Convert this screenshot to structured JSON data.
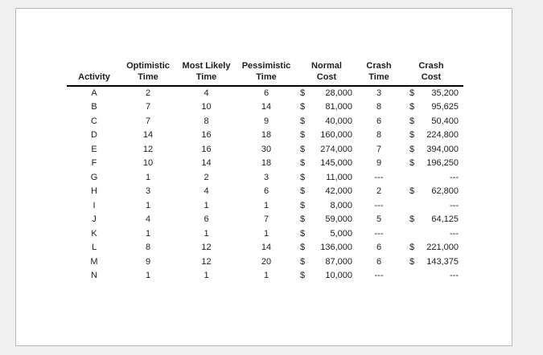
{
  "page": {
    "background_color": "#f0f0f1",
    "card_background_color": "#ffffff",
    "card_border_color": "#b4b8bc",
    "text_color": "#1d1d1d",
    "header_rule_color": "#000000",
    "currency_symbol": "$",
    "empty_value": "---"
  },
  "table": {
    "headers": [
      {
        "line1": "",
        "line2": "Activity"
      },
      {
        "line1": "Optimistic",
        "line2": "Time"
      },
      {
        "line1": "Most Likely",
        "line2": "Time"
      },
      {
        "line1": "Pessimistic",
        "line2": "Time"
      },
      {
        "line1": "Normal",
        "line2": "Cost"
      },
      {
        "line1": "Crash",
        "line2": "Time"
      },
      {
        "line1": "Crash",
        "line2": "Cost"
      }
    ],
    "rows": [
      {
        "activity": "A",
        "optimistic": "2",
        "most_likely": "4",
        "pessimistic": "6",
        "normal_cost": "28,000",
        "crash_time": "3",
        "crash_cost": "35,200"
      },
      {
        "activity": "B",
        "optimistic": "7",
        "most_likely": "10",
        "pessimistic": "14",
        "normal_cost": "81,000",
        "crash_time": "8",
        "crash_cost": "95,625"
      },
      {
        "activity": "C",
        "optimistic": "7",
        "most_likely": "8",
        "pessimistic": "9",
        "normal_cost": "40,000",
        "crash_time": "6",
        "crash_cost": "50,400"
      },
      {
        "activity": "D",
        "optimistic": "14",
        "most_likely": "16",
        "pessimistic": "18",
        "normal_cost": "160,000",
        "crash_time": "8",
        "crash_cost": "224,800"
      },
      {
        "activity": "E",
        "optimistic": "12",
        "most_likely": "16",
        "pessimistic": "30",
        "normal_cost": "274,000",
        "crash_time": "7",
        "crash_cost": "394,000"
      },
      {
        "activity": "F",
        "optimistic": "10",
        "most_likely": "14",
        "pessimistic": "18",
        "normal_cost": "145,000",
        "crash_time": "9",
        "crash_cost": "196,250"
      },
      {
        "activity": "G",
        "optimistic": "1",
        "most_likely": "2",
        "pessimistic": "3",
        "normal_cost": "11,000",
        "crash_time": "---",
        "crash_cost": "---"
      },
      {
        "activity": "H",
        "optimistic": "3",
        "most_likely": "4",
        "pessimistic": "6",
        "normal_cost": "42,000",
        "crash_time": "2",
        "crash_cost": "62,800"
      },
      {
        "activity": "I",
        "optimistic": "1",
        "most_likely": "1",
        "pessimistic": "1",
        "normal_cost": "8,000",
        "crash_time": "---",
        "crash_cost": "---"
      },
      {
        "activity": "J",
        "optimistic": "4",
        "most_likely": "6",
        "pessimistic": "7",
        "normal_cost": "59,000",
        "crash_time": "5",
        "crash_cost": "64,125"
      },
      {
        "activity": "K",
        "optimistic": "1",
        "most_likely": "1",
        "pessimistic": "1",
        "normal_cost": "5,000",
        "crash_time": "---",
        "crash_cost": "---"
      },
      {
        "activity": "L",
        "optimistic": "8",
        "most_likely": "12",
        "pessimistic": "14",
        "normal_cost": "136,000",
        "crash_time": "6",
        "crash_cost": "221,000"
      },
      {
        "activity": "M",
        "optimistic": "9",
        "most_likely": "12",
        "pessimistic": "20",
        "normal_cost": "87,000",
        "crash_time": "6",
        "crash_cost": "143,375"
      },
      {
        "activity": "N",
        "optimistic": "1",
        "most_likely": "1",
        "pessimistic": "1",
        "normal_cost": "10,000",
        "crash_time": "---",
        "crash_cost": "---"
      }
    ]
  }
}
